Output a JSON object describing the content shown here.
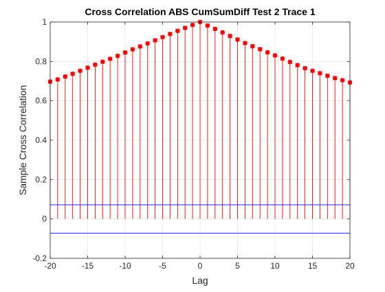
{
  "chart_data": {
    "type": "stem",
    "title": "Cross Correlation ABS CumSumDiff Test 2 Trace 1",
    "xlabel": "Lag",
    "ylabel": "Sample Cross Correlation",
    "xlim": [
      -20,
      20
    ],
    "ylim": [
      -0.2,
      1
    ],
    "xticks": [
      "-20",
      "-15",
      "-10",
      "-5",
      "0",
      "5",
      "10",
      "15",
      "20"
    ],
    "yticks": [
      "-0.2",
      "0",
      "0.2",
      "0.4",
      "0.6",
      "0.8",
      "1"
    ],
    "grid": true,
    "bounds": [
      0.072,
      -0.072
    ],
    "colors": {
      "stem": "#ff0000",
      "marker": "#ff0000",
      "bounds": "#0000ff",
      "axis": "#262626",
      "grid": "#dfdfdf"
    },
    "x": [
      -20,
      -19,
      -18,
      -17,
      -16,
      -15,
      -14,
      -13,
      -12,
      -11,
      -10,
      -9,
      -8,
      -7,
      -6,
      -5,
      -4,
      -3,
      -2,
      -1,
      0,
      1,
      2,
      3,
      4,
      5,
      6,
      7,
      8,
      9,
      10,
      11,
      12,
      13,
      14,
      15,
      16,
      17,
      18,
      19,
      20
    ],
    "values": [
      0.697,
      0.708,
      0.723,
      0.737,
      0.752,
      0.768,
      0.783,
      0.798,
      0.813,
      0.828,
      0.845,
      0.861,
      0.876,
      0.891,
      0.907,
      0.923,
      0.939,
      0.955,
      0.97,
      0.985,
      1.0,
      0.982,
      0.965,
      0.947,
      0.929,
      0.911,
      0.893,
      0.877,
      0.862,
      0.846,
      0.83,
      0.814,
      0.797,
      0.781,
      0.765,
      0.752,
      0.74,
      0.727,
      0.715,
      0.704,
      0.693
    ]
  }
}
